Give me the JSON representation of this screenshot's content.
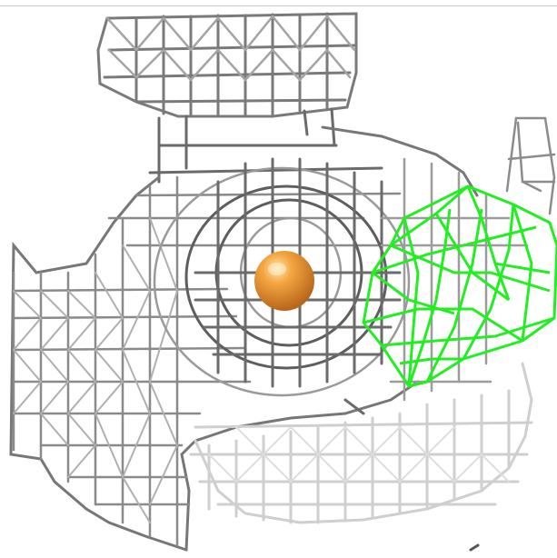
{
  "scene": {
    "background": "#ffffff",
    "mesh_color_dark": "#5a5a5a",
    "mesh_color_mid": "#8c8c8c",
    "mesh_color_light": "#c8c8c8",
    "ligand_mesh_color": "#22ee22",
    "ion_color": "#f09a30"
  }
}
